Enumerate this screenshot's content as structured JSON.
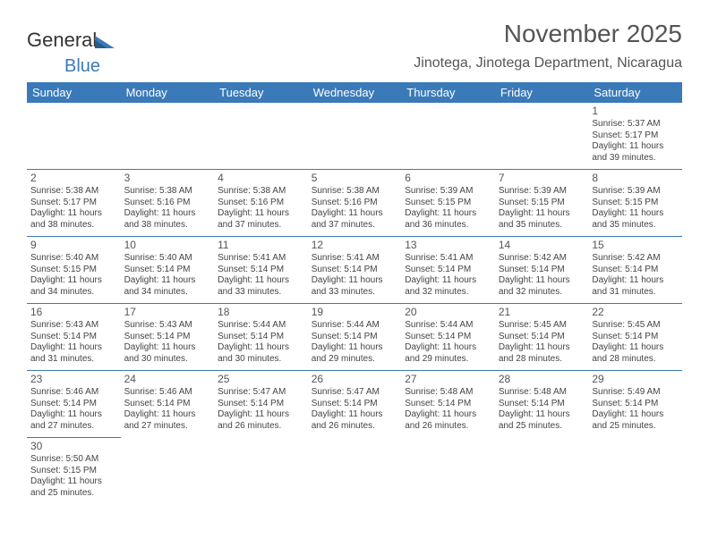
{
  "logo": {
    "part1": "General",
    "part2": "Blue"
  },
  "title": "November 2025",
  "subtitle": "Jinotega, Jinotega Department, Nicaragua",
  "day_headers": [
    "Sunday",
    "Monday",
    "Tuesday",
    "Wednesday",
    "Thursday",
    "Friday",
    "Saturday"
  ],
  "colors": {
    "header_bg": "#3a7ab8",
    "header_fg": "#ffffff",
    "cell_border": "#3a7ab8",
    "text": "#444444",
    "title": "#555555"
  },
  "weeks": [
    [
      null,
      null,
      null,
      null,
      null,
      null,
      {
        "n": "1",
        "sr": "5:37 AM",
        "ss": "5:17 PM",
        "dl": "11 hours and 39 minutes."
      }
    ],
    [
      {
        "n": "2",
        "sr": "5:38 AM",
        "ss": "5:17 PM",
        "dl": "11 hours and 38 minutes."
      },
      {
        "n": "3",
        "sr": "5:38 AM",
        "ss": "5:16 PM",
        "dl": "11 hours and 38 minutes."
      },
      {
        "n": "4",
        "sr": "5:38 AM",
        "ss": "5:16 PM",
        "dl": "11 hours and 37 minutes."
      },
      {
        "n": "5",
        "sr": "5:38 AM",
        "ss": "5:16 PM",
        "dl": "11 hours and 37 minutes."
      },
      {
        "n": "6",
        "sr": "5:39 AM",
        "ss": "5:15 PM",
        "dl": "11 hours and 36 minutes."
      },
      {
        "n": "7",
        "sr": "5:39 AM",
        "ss": "5:15 PM",
        "dl": "11 hours and 35 minutes."
      },
      {
        "n": "8",
        "sr": "5:39 AM",
        "ss": "5:15 PM",
        "dl": "11 hours and 35 minutes."
      }
    ],
    [
      {
        "n": "9",
        "sr": "5:40 AM",
        "ss": "5:15 PM",
        "dl": "11 hours and 34 minutes."
      },
      {
        "n": "10",
        "sr": "5:40 AM",
        "ss": "5:14 PM",
        "dl": "11 hours and 34 minutes."
      },
      {
        "n": "11",
        "sr": "5:41 AM",
        "ss": "5:14 PM",
        "dl": "11 hours and 33 minutes."
      },
      {
        "n": "12",
        "sr": "5:41 AM",
        "ss": "5:14 PM",
        "dl": "11 hours and 33 minutes."
      },
      {
        "n": "13",
        "sr": "5:41 AM",
        "ss": "5:14 PM",
        "dl": "11 hours and 32 minutes."
      },
      {
        "n": "14",
        "sr": "5:42 AM",
        "ss": "5:14 PM",
        "dl": "11 hours and 32 minutes."
      },
      {
        "n": "15",
        "sr": "5:42 AM",
        "ss": "5:14 PM",
        "dl": "11 hours and 31 minutes."
      }
    ],
    [
      {
        "n": "16",
        "sr": "5:43 AM",
        "ss": "5:14 PM",
        "dl": "11 hours and 31 minutes."
      },
      {
        "n": "17",
        "sr": "5:43 AM",
        "ss": "5:14 PM",
        "dl": "11 hours and 30 minutes."
      },
      {
        "n": "18",
        "sr": "5:44 AM",
        "ss": "5:14 PM",
        "dl": "11 hours and 30 minutes."
      },
      {
        "n": "19",
        "sr": "5:44 AM",
        "ss": "5:14 PM",
        "dl": "11 hours and 29 minutes."
      },
      {
        "n": "20",
        "sr": "5:44 AM",
        "ss": "5:14 PM",
        "dl": "11 hours and 29 minutes."
      },
      {
        "n": "21",
        "sr": "5:45 AM",
        "ss": "5:14 PM",
        "dl": "11 hours and 28 minutes."
      },
      {
        "n": "22",
        "sr": "5:45 AM",
        "ss": "5:14 PM",
        "dl": "11 hours and 28 minutes."
      }
    ],
    [
      {
        "n": "23",
        "sr": "5:46 AM",
        "ss": "5:14 PM",
        "dl": "11 hours and 27 minutes."
      },
      {
        "n": "24",
        "sr": "5:46 AM",
        "ss": "5:14 PM",
        "dl": "11 hours and 27 minutes."
      },
      {
        "n": "25",
        "sr": "5:47 AM",
        "ss": "5:14 PM",
        "dl": "11 hours and 26 minutes."
      },
      {
        "n": "26",
        "sr": "5:47 AM",
        "ss": "5:14 PM",
        "dl": "11 hours and 26 minutes."
      },
      {
        "n": "27",
        "sr": "5:48 AM",
        "ss": "5:14 PM",
        "dl": "11 hours and 26 minutes."
      },
      {
        "n": "28",
        "sr": "5:48 AM",
        "ss": "5:14 PM",
        "dl": "11 hours and 25 minutes."
      },
      {
        "n": "29",
        "sr": "5:49 AM",
        "ss": "5:14 PM",
        "dl": "11 hours and 25 minutes."
      }
    ],
    [
      {
        "n": "30",
        "sr": "5:50 AM",
        "ss": "5:15 PM",
        "dl": "11 hours and 25 minutes."
      },
      null,
      null,
      null,
      null,
      null,
      null
    ]
  ],
  "labels": {
    "sunrise": "Sunrise: ",
    "sunset": "Sunset: ",
    "daylight": "Daylight: "
  }
}
